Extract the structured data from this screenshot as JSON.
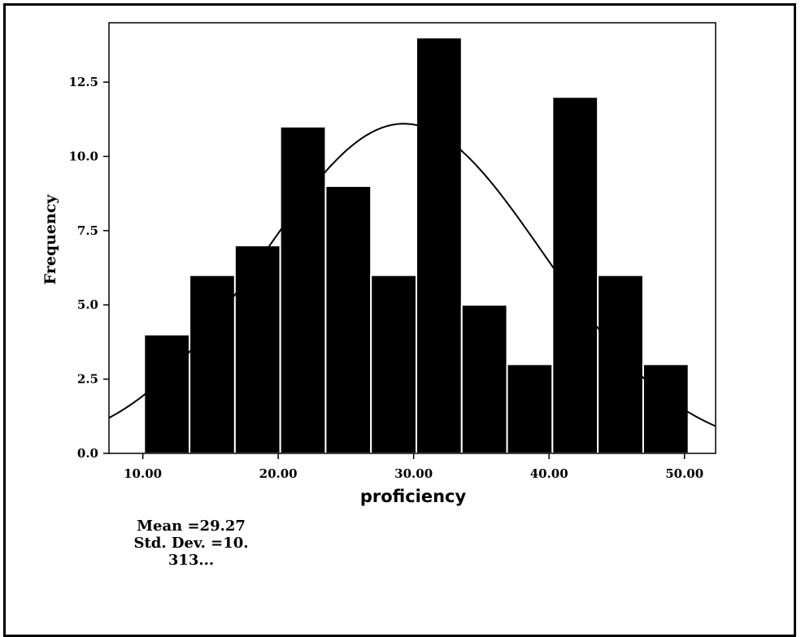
{
  "chart_data": {
    "type": "bar",
    "ylabel": "Frequency",
    "xlabel": "proficiency",
    "x_ticks": [
      "10.00",
      "20.00",
      "30.00",
      "40.00",
      "50.00"
    ],
    "y_ticks": [
      "0.0",
      "2.5",
      "5.0",
      "7.5",
      "10.0",
      "12.5"
    ],
    "xlim": [
      7.5,
      52.3
    ],
    "ylim": [
      0,
      14.5
    ],
    "bin_edges": [
      10.1,
      13.45,
      16.8,
      20.15,
      23.5,
      26.85,
      30.2,
      33.55,
      36.9,
      40.25,
      43.6,
      46.95,
      50.3
    ],
    "values": [
      4,
      6,
      7,
      11,
      9,
      6,
      14,
      5,
      3,
      12,
      6,
      3
    ],
    "bar_color": "#000000",
    "normal_curve": {
      "mean": 29.27,
      "std_dev": 10.31,
      "peak": 11.1
    }
  },
  "stats": {
    "mean_line": "Mean =29.27",
    "std_line": "Std. Dev. =10.",
    "std_line2": "313..."
  }
}
